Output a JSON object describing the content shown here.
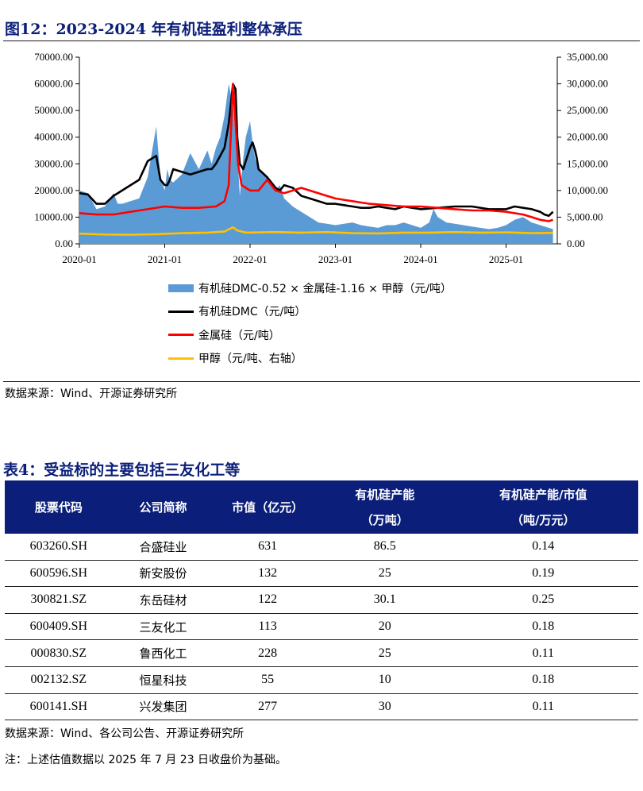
{
  "figure": {
    "title": "图12：2023-2024 年有机硅盈利整体承压",
    "source": "数据来源：Wind、开源证券研究所"
  },
  "chart_data": {
    "type": "area",
    "x_ticks": [
      "2020-01",
      "2021-01",
      "2022-01",
      "2023-01",
      "2024-01",
      "2025-01"
    ],
    "left_axis_ticks": [
      "0.00",
      "10000.00",
      "20000.00",
      "30000.00",
      "40000.00",
      "50000.00",
      "60000.00",
      "70000.00"
    ],
    "right_axis_ticks": [
      "0.00",
      "5,000.00",
      "10,000.00",
      "15,000.00",
      "20,000.00",
      "25,000.00",
      "30,000.00",
      "35,000.00"
    ],
    "ylim_left": [
      0,
      70000
    ],
    "ylim_right": [
      0,
      35000
    ],
    "xlim": [
      2020.0,
      2025.6
    ],
    "legend_placement": "bottom",
    "series": [
      {
        "name": "有机硅DMC-0.52 × 金属硅-1.16 × 甲醇（元/吨）",
        "kind": "area",
        "axis": "left",
        "color": "#5b9bd5",
        "x": [
          2020.0,
          2020.1,
          2020.2,
          2020.3,
          2020.4,
          2020.45,
          2020.5,
          2020.6,
          2020.7,
          2020.8,
          2020.9,
          2020.95,
          2021.0,
          2021.03,
          2021.06,
          2021.1,
          2021.2,
          2021.25,
          2021.3,
          2021.35,
          2021.4,
          2021.5,
          2021.55,
          2021.6,
          2021.65,
          2021.7,
          2021.75,
          2021.8,
          2021.83,
          2021.85,
          2021.88,
          2021.92,
          2021.95,
          2022.0,
          2022.03,
          2022.06,
          2022.08,
          2022.1,
          2022.2,
          2022.3,
          2022.35,
          2022.4,
          2022.5,
          2022.6,
          2022.7,
          2022.8,
          2022.9,
          2023.0,
          2023.1,
          2023.2,
          2023.3,
          2023.4,
          2023.5,
          2023.6,
          2023.7,
          2023.8,
          2023.9,
          2024.0,
          2024.1,
          2024.15,
          2024.2,
          2024.3,
          2024.4,
          2024.5,
          2024.6,
          2024.7,
          2024.8,
          2024.9,
          2025.0,
          2025.1,
          2025.2,
          2025.3,
          2025.4,
          2025.5,
          2025.55
        ],
        "values": [
          20000,
          19000,
          13000,
          14000,
          19000,
          15000,
          15000,
          16000,
          17000,
          25000,
          44000,
          25000,
          20000,
          28000,
          24000,
          23000,
          26000,
          30000,
          34000,
          31000,
          28000,
          35000,
          30000,
          36000,
          40000,
          48000,
          60000,
          52000,
          40000,
          35000,
          18000,
          32000,
          40000,
          46000,
          38000,
          32000,
          30000,
          28000,
          25000,
          20000,
          22000,
          17000,
          14000,
          12000,
          10000,
          8000,
          7500,
          7000,
          7500,
          8000,
          7000,
          6500,
          6000,
          7000,
          7000,
          8000,
          7000,
          6000,
          8000,
          13000,
          10000,
          8000,
          7500,
          7000,
          6500,
          6000,
          5500,
          6000,
          7000,
          9000,
          10000,
          8000,
          7000,
          6000,
          5500
        ]
      },
      {
        "name": "有机硅DMC（元/吨）",
        "kind": "line",
        "axis": "left",
        "color": "#000000",
        "x": [
          2020.0,
          2020.1,
          2020.2,
          2020.3,
          2020.4,
          2020.5,
          2020.6,
          2020.7,
          2020.8,
          2020.9,
          2020.95,
          2021.0,
          2021.03,
          2021.06,
          2021.1,
          2021.2,
          2021.3,
          2021.4,
          2021.5,
          2021.55,
          2021.6,
          2021.65,
          2021.7,
          2021.75,
          2021.8,
          2021.83,
          2021.85,
          2021.88,
          2021.92,
          2021.95,
          2022.0,
          2022.03,
          2022.06,
          2022.08,
          2022.1,
          2022.2,
          2022.25,
          2022.3,
          2022.35,
          2022.4,
          2022.5,
          2022.6,
          2022.7,
          2022.8,
          2022.9,
          2023.0,
          2023.1,
          2023.2,
          2023.3,
          2023.4,
          2023.5,
          2023.6,
          2023.7,
          2023.8,
          2023.9,
          2024.0,
          2024.2,
          2024.4,
          2024.6,
          2024.8,
          2025.0,
          2025.1,
          2025.2,
          2025.3,
          2025.4,
          2025.45,
          2025.5,
          2025.55
        ],
        "values": [
          19000,
          18500,
          15000,
          15000,
          18000,
          20000,
          22000,
          24000,
          31000,
          33000,
          24000,
          22000,
          22000,
          24000,
          28000,
          27000,
          26000,
          27000,
          28000,
          28000,
          30000,
          33000,
          36000,
          45000,
          60000,
          58000,
          40000,
          30000,
          28000,
          31000,
          36000,
          38000,
          35000,
          32000,
          28000,
          25000,
          23000,
          21000,
          20000,
          22000,
          21000,
          18000,
          17000,
          16000,
          15000,
          15000,
          14500,
          14000,
          13500,
          13500,
          14000,
          13500,
          13000,
          14000,
          13500,
          13000,
          13500,
          14000,
          14000,
          13000,
          13000,
          14000,
          13500,
          13000,
          12000,
          11000,
          10500,
          12000
        ]
      },
      {
        "name": "金属硅（元/吨）",
        "kind": "line",
        "axis": "left",
        "color": "#ff0000",
        "x": [
          2020.0,
          2020.2,
          2020.4,
          2020.6,
          2020.8,
          2021.0,
          2021.2,
          2021.4,
          2021.6,
          2021.7,
          2021.75,
          2021.8,
          2021.83,
          2021.86,
          2021.9,
          2022.0,
          2022.1,
          2022.2,
          2022.3,
          2022.4,
          2022.5,
          2022.6,
          2022.7,
          2022.8,
          2022.9,
          2023.0,
          2023.1,
          2023.2,
          2023.3,
          2023.4,
          2023.6,
          2023.8,
          2024.0,
          2024.2,
          2024.4,
          2024.6,
          2024.8,
          2025.0,
          2025.2,
          2025.3,
          2025.4,
          2025.5,
          2025.55
        ],
        "values": [
          11500,
          11000,
          11000,
          12000,
          13000,
          14000,
          13500,
          13500,
          14000,
          16000,
          22000,
          60000,
          45000,
          30000,
          22000,
          20000,
          20000,
          24000,
          20000,
          19000,
          20000,
          21000,
          20000,
          19000,
          18000,
          17000,
          16500,
          16000,
          15500,
          15000,
          14500,
          14000,
          14000,
          13500,
          13000,
          12500,
          12500,
          12000,
          11000,
          10000,
          9000,
          8500,
          9000
        ]
      },
      {
        "name": "甲醇（元/吨、右轴）",
        "kind": "line",
        "axis": "right",
        "color": "#ffc000",
        "x": [
          2020.0,
          2020.3,
          2020.6,
          2020.9,
          2021.2,
          2021.5,
          2021.7,
          2021.75,
          2021.8,
          2021.85,
          2021.95,
          2022.3,
          2022.6,
          2022.9,
          2023.2,
          2023.5,
          2023.8,
          2024.1,
          2024.4,
          2024.7,
          2025.0,
          2025.3,
          2025.55
        ],
        "values": [
          1900,
          1750,
          1700,
          1800,
          2000,
          2100,
          2300,
          2700,
          3100,
          2500,
          2100,
          2200,
          2100,
          2200,
          2000,
          1950,
          2100,
          2100,
          2200,
          2100,
          2150,
          2000,
          2050
        ]
      }
    ]
  },
  "table": {
    "title": "表4：受益标的主要包括三友化工等",
    "headers": [
      "股票代码",
      "公司简称",
      "市值（亿元）",
      "有机硅产能\n（万吨）",
      "有机硅产能/市值\n（吨/万元）"
    ],
    "rows": [
      [
        "603260.SH",
        "合盛硅业",
        "631",
        "86.5",
        "0.14"
      ],
      [
        "600596.SH",
        "新安股份",
        "132",
        "25",
        "0.19"
      ],
      [
        "300821.SZ",
        "东岳硅材",
        "122",
        "30.1",
        "0.25"
      ],
      [
        "600409.SH",
        "三友化工",
        "113",
        "20",
        "0.18"
      ],
      [
        "000830.SZ",
        "鲁西化工",
        "228",
        "25",
        "0.11"
      ],
      [
        "002132.SZ",
        "恒星科技",
        "55",
        "10",
        "0.18"
      ],
      [
        "600141.SH",
        "兴发集团",
        "277",
        "30",
        "0.11"
      ]
    ],
    "source": "数据来源：Wind、各公司公告、开源证券研究所",
    "note": "注：上述估值数据以 2025 年 7 月 23 日收盘价为基础。"
  }
}
